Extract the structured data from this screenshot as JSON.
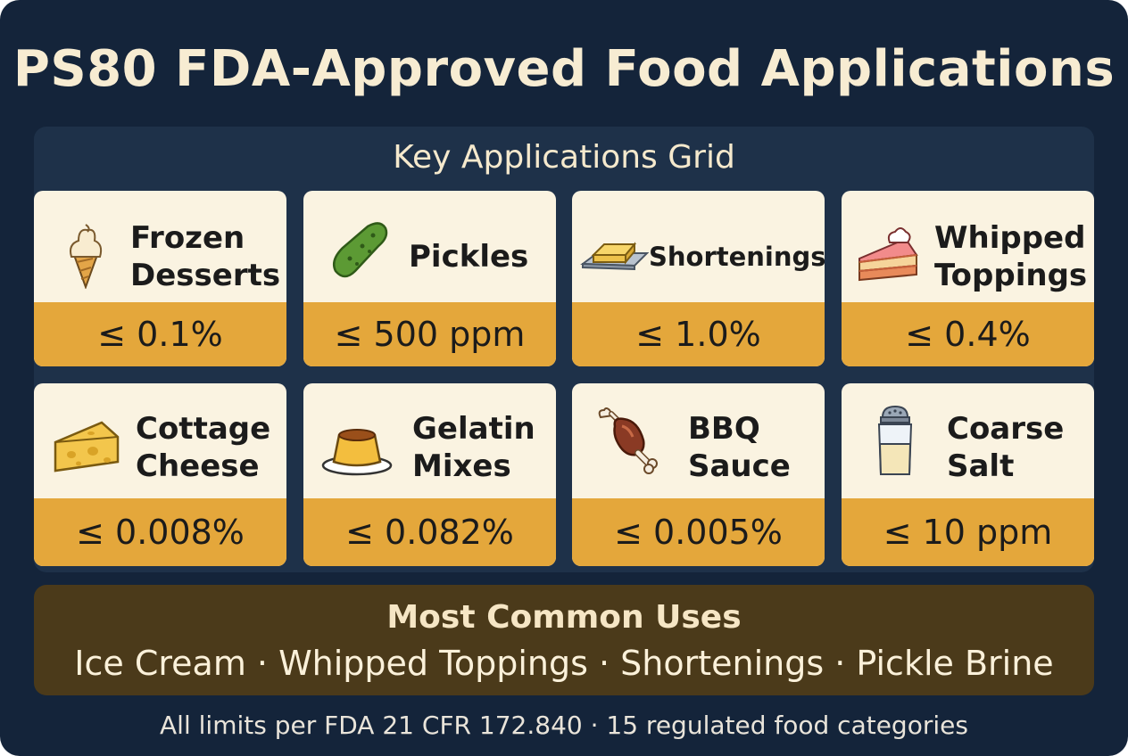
{
  "title": "PS80 FDA-Approved Food Applications",
  "grid": {
    "heading": "Key Applications Grid",
    "cards": [
      {
        "name": "Frozen Desserts",
        "line1": "Frozen",
        "line2": "Desserts",
        "limit": "≤ 0.1%",
        "icon": "ice-cream-cone-icon"
      },
      {
        "name": "Pickles",
        "line1": "Pickles",
        "line2": "",
        "limit": "≤ 500 ppm",
        "icon": "pickle-icon"
      },
      {
        "name": "Shortenings",
        "line1": "Shortenings",
        "line2": "",
        "limit": "≤ 1.0%",
        "icon": "butter-icon"
      },
      {
        "name": "Whipped Toppings",
        "line1": "Whipped",
        "line2": "Toppings",
        "limit": "≤ 0.4%",
        "icon": "cake-slice-icon"
      },
      {
        "name": "Cottage Cheese",
        "line1": "Cottage",
        "line2": "Cheese",
        "limit": "≤ 0.008%",
        "icon": "cheese-icon"
      },
      {
        "name": "Gelatin Mixes",
        "line1": "Gelatin",
        "line2": "Mixes",
        "limit": "≤ 0.082%",
        "icon": "flan-icon"
      },
      {
        "name": "BBQ Sauce",
        "line1": "BBQ",
        "line2": "Sauce",
        "limit": "≤ 0.005%",
        "icon": "meat-drumstick-icon"
      },
      {
        "name": "Coarse Salt",
        "line1": "Coarse",
        "line2": "Salt",
        "limit": "≤ 10 ppm",
        "icon": "salt-shaker-icon"
      }
    ]
  },
  "common_uses": {
    "heading": "Most Common Uses",
    "items": "Ice Cream · Whipped Toppings · Shortenings · Pickle Brine"
  },
  "footer": "All limits per FDA 21 CFR 172.840 · 15 regulated food categories",
  "colors": {
    "background": "#14243a",
    "panel": "#1e3149",
    "card": "#faf3e1",
    "limit_band": "#e4a73b",
    "common_panel": "#4b3a1a",
    "title_text": "#f7ecd2"
  }
}
